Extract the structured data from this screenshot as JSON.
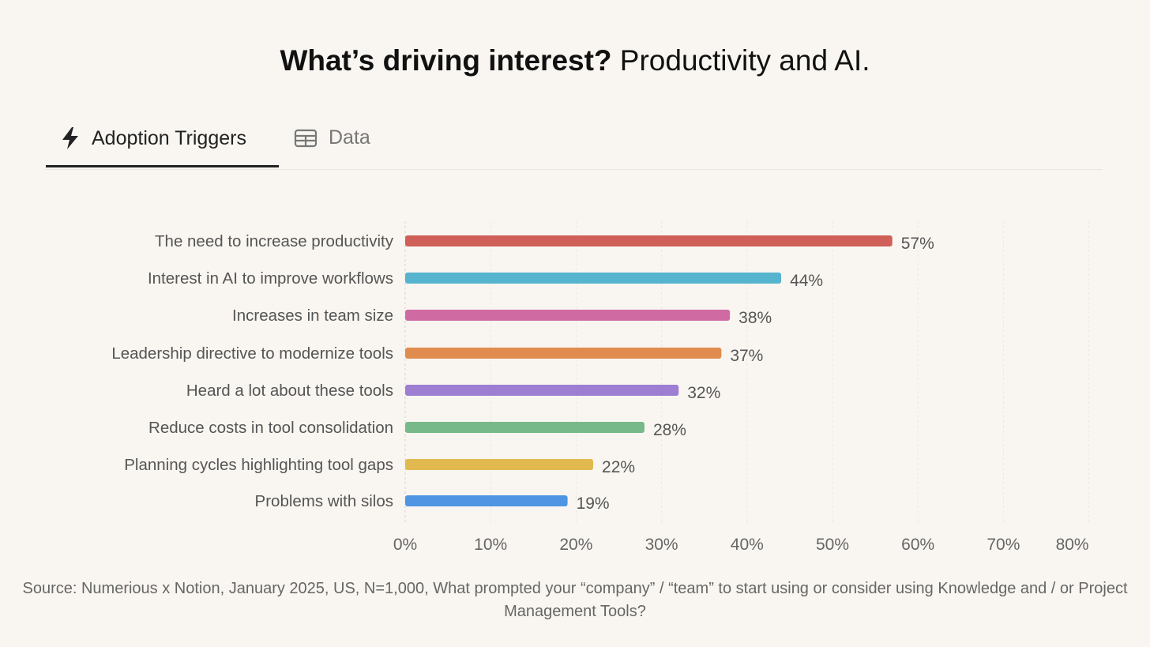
{
  "title_bold": "What’s driving interest?",
  "title_rest": " Productivity and AI.",
  "tabs": [
    {
      "label": "Adoption Triggers",
      "icon": "lightning-icon",
      "active": true
    },
    {
      "label": "Data",
      "icon": "table-icon",
      "active": false
    }
  ],
  "chart_data": {
    "type": "bar",
    "orientation": "horizontal",
    "categories": [
      "The need to increase productivity",
      "Interest in AI to improve workflows",
      "Increases in team size",
      "Leadership directive to modernize tools",
      "Heard a lot about these tools",
      "Reduce costs in tool consolidation",
      "Planning cycles highlighting tool gaps",
      "Problems with silos"
    ],
    "values": [
      57,
      44,
      38,
      37,
      32,
      28,
      22,
      19
    ],
    "value_labels": [
      "57%",
      "44%",
      "38%",
      "37%",
      "32%",
      "28%",
      "22%",
      "19%"
    ],
    "colors": [
      "#cf5f58",
      "#56b4cf",
      "#cf6aa3",
      "#e08c4e",
      "#9d7ed3",
      "#78b98a",
      "#e1b94f",
      "#4f95e3"
    ],
    "xlim": [
      0,
      80
    ],
    "xticks": [
      "0%",
      "10%",
      "20%",
      "30%",
      "40%",
      "50%",
      "60%",
      "70%",
      "80%"
    ],
    "grid": true
  },
  "source": "Source: Numerious x Notion, January 2025, US, N=1,000, What prompted your “company” / “team” to start using or consider using Knowledge and / or Project Management Tools?"
}
